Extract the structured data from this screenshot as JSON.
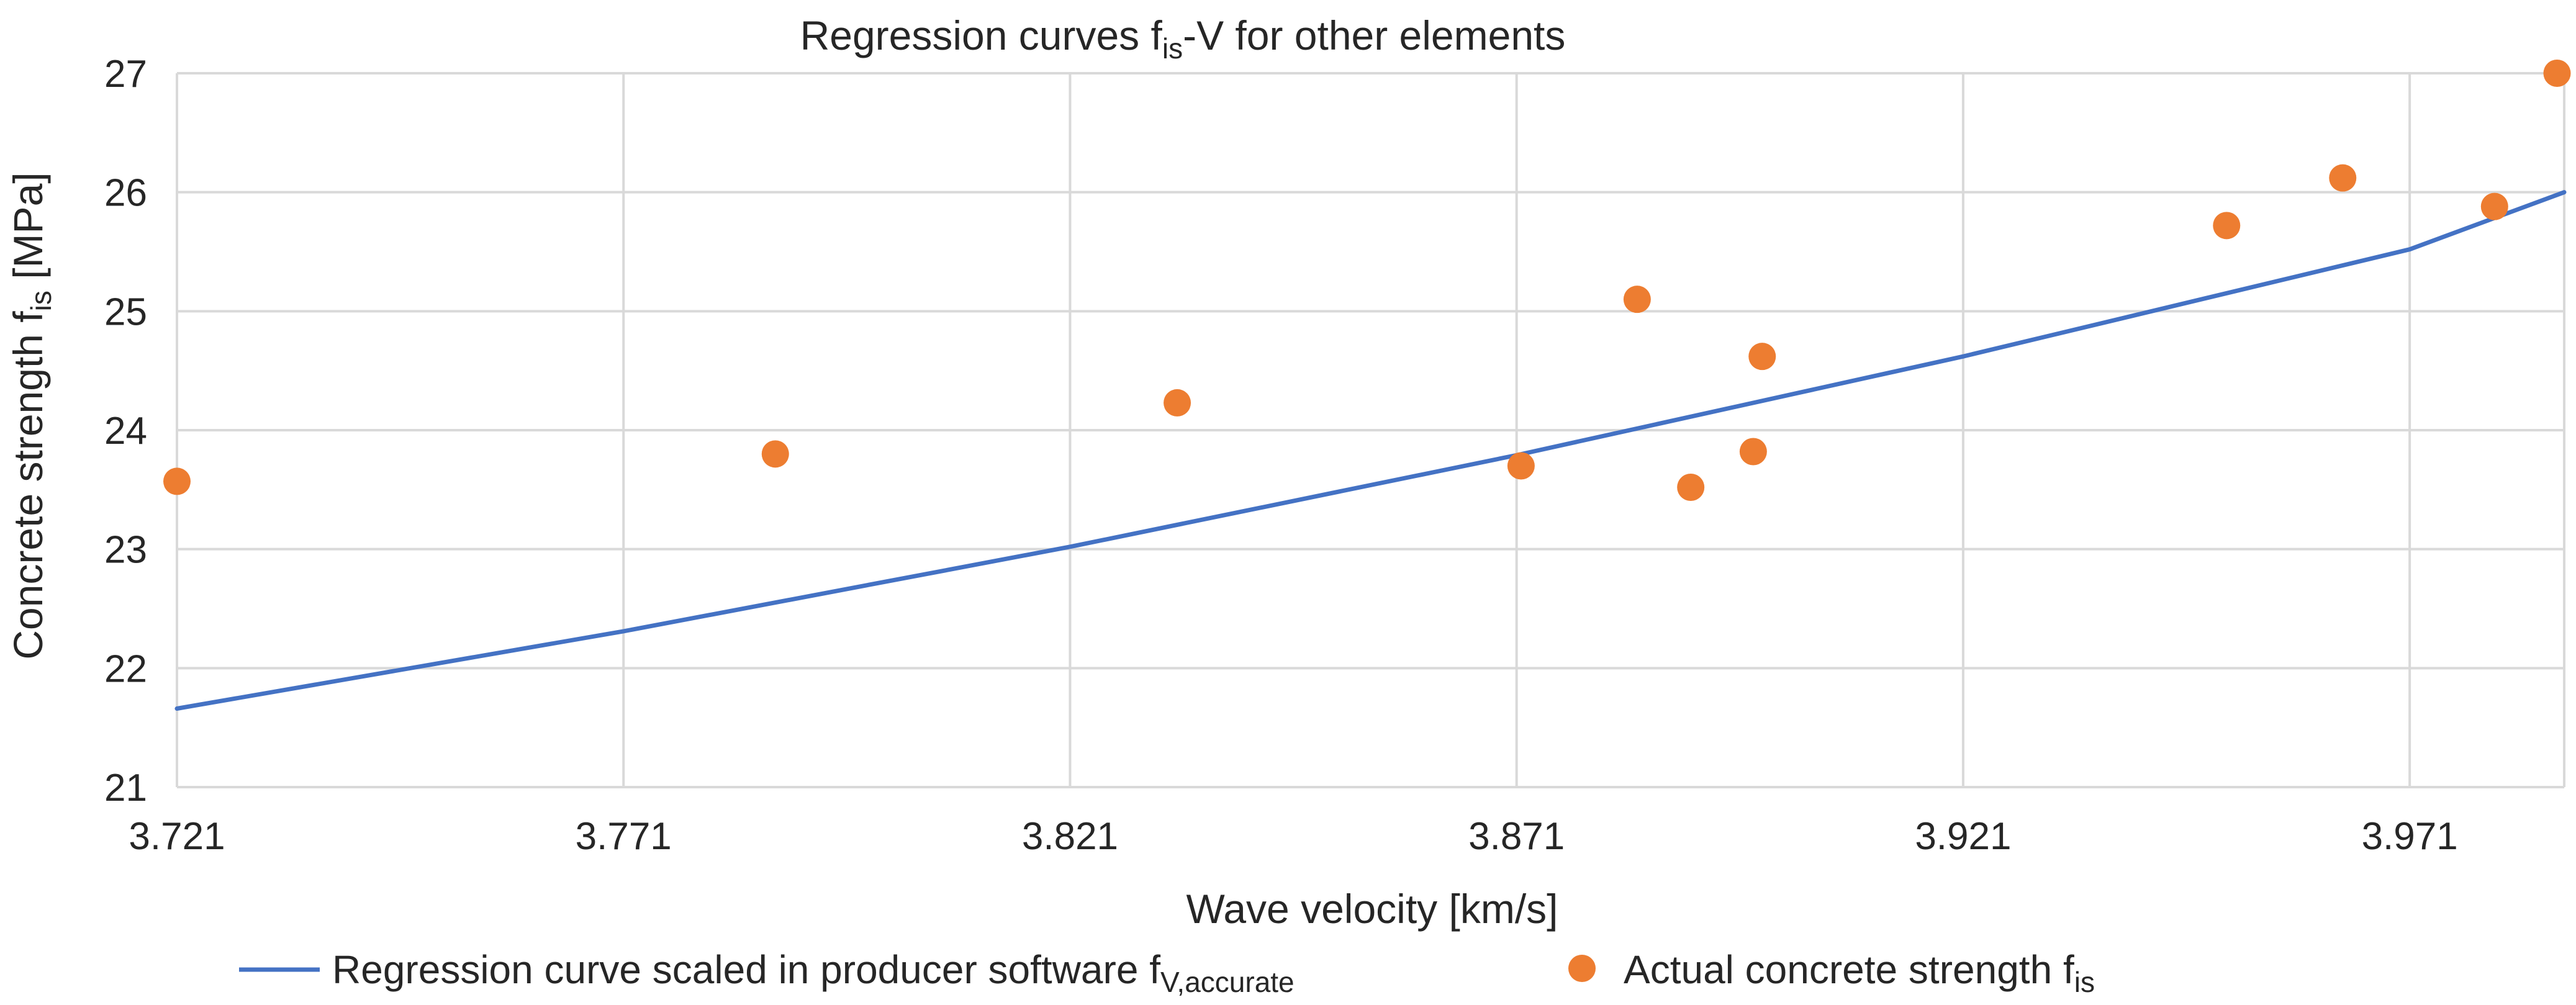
{
  "chart_data": {
    "type": "scatter",
    "title": {
      "main": "Regression curves f",
      "sub": "is",
      "rest": "-V for other elements"
    },
    "xlabel": "Wave velocity [km/s]",
    "ylabel": {
      "main": "Concrete strength f",
      "sub": "is",
      "rest": " [MPa]"
    },
    "xlim": [
      3.721,
      3.9883
    ],
    "ylim": [
      21,
      27
    ],
    "x_ticks": [
      "3.721",
      "3.771",
      "3.821",
      "3.871",
      "3.921",
      "3.971"
    ],
    "y_ticks": [
      "21",
      "22",
      "23",
      "24",
      "25",
      "26",
      "27"
    ],
    "grid": true,
    "legend_position": "bottom",
    "series": [
      {
        "name": "Regression curve scaled in producer software f",
        "name_sub": "V,accurate",
        "kind": "line",
        "color": "#4472C4",
        "x": [
          3.721,
          3.771,
          3.821,
          3.871,
          3.921,
          3.971,
          3.9883
        ],
        "y": [
          21.66,
          22.31,
          23.02,
          23.79,
          24.62,
          25.52,
          26.0
        ]
      },
      {
        "name": "Actual concrete strength f",
        "name_sub": "is",
        "kind": "scatter",
        "color": "#ED7D31",
        "x": [
          3.721,
          3.788,
          3.833,
          3.8715,
          3.8845,
          3.8905,
          3.8975,
          3.8985,
          3.9505,
          3.9635,
          3.9805,
          3.9875
        ],
        "y": [
          23.57,
          23.8,
          24.23,
          23.7,
          25.1,
          23.52,
          23.82,
          24.62,
          25.72,
          26.12,
          25.88,
          27.0
        ]
      }
    ]
  }
}
